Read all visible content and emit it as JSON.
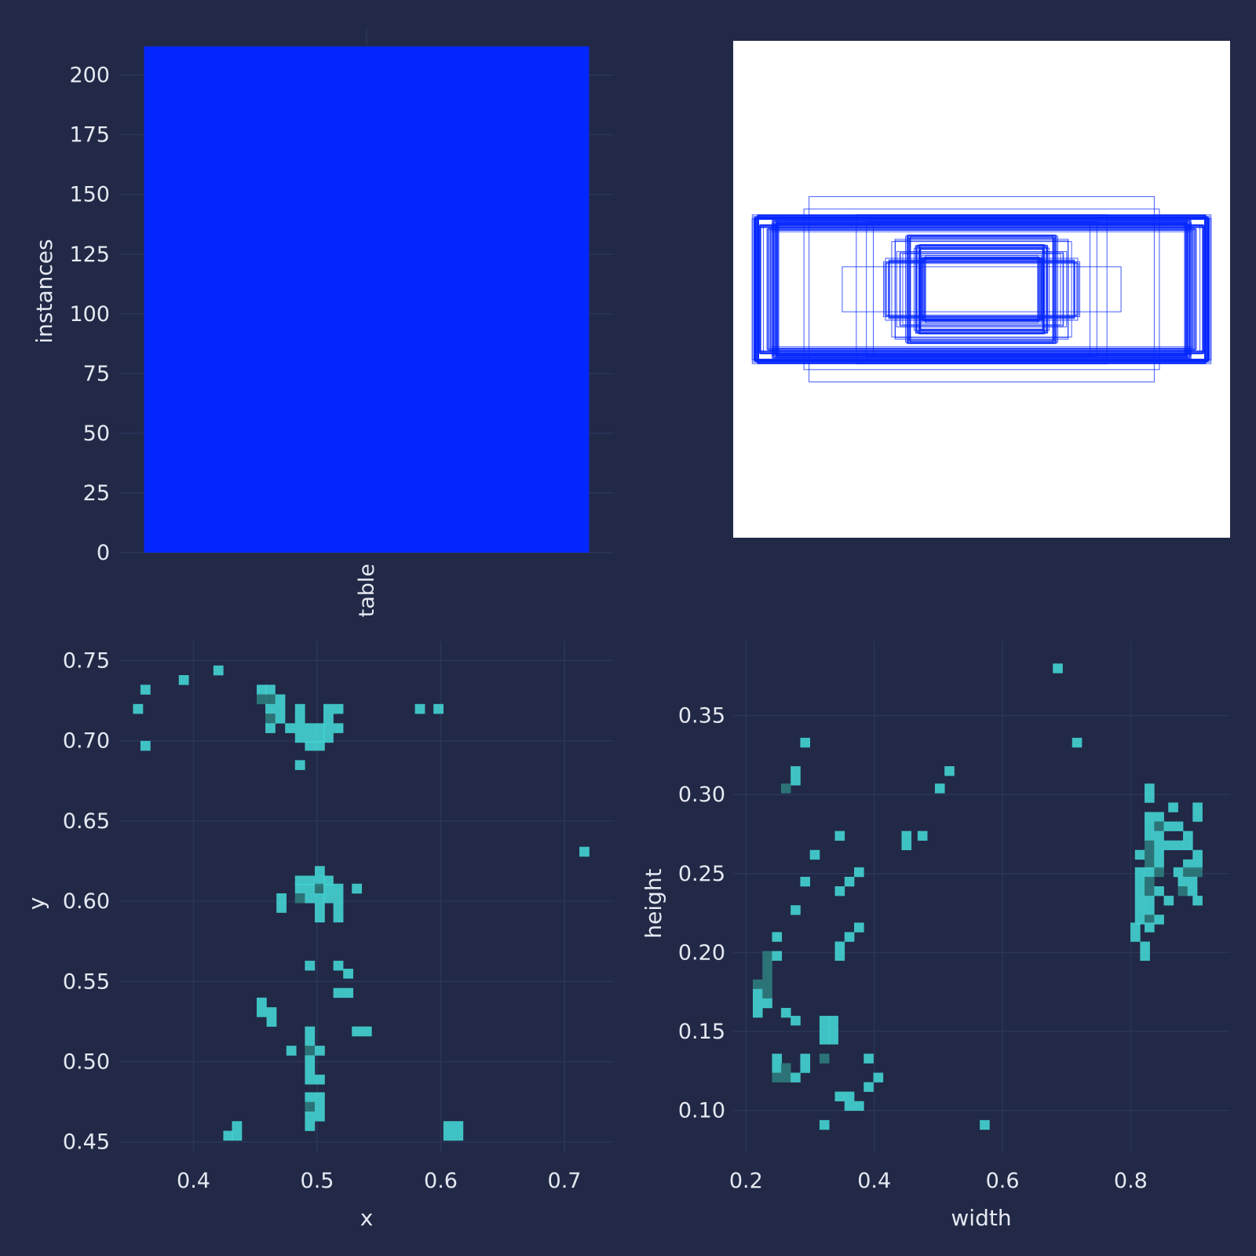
{
  "theme": {
    "background": "#212946",
    "grid": "#2a3559",
    "text": "#e6e9f2",
    "bar_color": "#0527ff",
    "box_color": "#0527ff",
    "heat_light": "#43cfcf",
    "heat_mid": "#17b3b3",
    "heat_dark": "#2e7a7c"
  },
  "chart_data": [
    {
      "type": "bar",
      "categories": [
        "table"
      ],
      "values": [
        212
      ],
      "xlabel": "",
      "ylabel": "instances",
      "ylim": [
        0,
        215
      ],
      "yticks": [
        0,
        25,
        50,
        75,
        100,
        125,
        150,
        175,
        200
      ],
      "ytick_labels": [
        "0",
        "25",
        "50",
        "75",
        "100",
        "125",
        "150",
        "175",
        "200"
      ],
      "grid": true
    },
    {
      "type": "scatter",
      "description_kind": "bounding-box overlay",
      "xlim": [
        0,
        1
      ],
      "ylim": [
        0,
        1
      ],
      "boxes": [
        {
          "w": 0.91,
          "h": 0.29,
          "count": 26
        },
        {
          "w": 0.83,
          "h": 0.27,
          "count": 18
        },
        {
          "w": 0.26,
          "h": 0.17,
          "count": 14
        },
        {
          "w": 0.24,
          "h": 0.13,
          "count": 12
        },
        {
          "w": 0.3,
          "h": 0.21,
          "count": 10
        },
        {
          "w": 0.89,
          "h": 0.25,
          "count": 10
        },
        {
          "w": 0.85,
          "h": 0.24,
          "count": 8
        },
        {
          "w": 0.69,
          "h": 0.38,
          "count": 1
        },
        {
          "w": 0.71,
          "h": 0.33,
          "count": 1
        },
        {
          "w": 0.57,
          "h": 0.09,
          "count": 1
        },
        {
          "w": 0.51,
          "h": 0.31,
          "count": 1
        },
        {
          "w": 0.45,
          "h": 0.27,
          "count": 2
        },
        {
          "w": 0.38,
          "h": 0.11,
          "count": 6
        },
        {
          "w": 0.33,
          "h": 0.15,
          "count": 4
        },
        {
          "w": 0.4,
          "h": 0.12,
          "count": 2
        },
        {
          "w": 0.35,
          "h": 0.2,
          "count": 3
        }
      ],
      "grid": false
    },
    {
      "type": "heatmap",
      "xlabel": "x",
      "ylabel": "y",
      "xlim": [
        0.34,
        0.74
      ],
      "ylim": [
        0.443,
        0.762
      ],
      "xticks": [
        0.4,
        0.5,
        0.6,
        0.7
      ],
      "xtick_labels": [
        "0.4",
        "0.5",
        "0.6",
        "0.7"
      ],
      "yticks": [
        0.45,
        0.5,
        0.55,
        0.6,
        0.65,
        0.7,
        0.75
      ],
      "ytick_labels": [
        "0.45",
        "0.50",
        "0.55",
        "0.60",
        "0.65",
        "0.70",
        "0.75"
      ],
      "bin_width": 0.0078,
      "bin_height": 0.0059,
      "points": [
        [
          0.355,
          0.72,
          1
        ],
        [
          0.361,
          0.732,
          1
        ],
        [
          0.361,
          0.697,
          1
        ],
        [
          0.392,
          0.738,
          1
        ],
        [
          0.42,
          0.744,
          1
        ],
        [
          0.455,
          0.732,
          1
        ],
        [
          0.462,
          0.732,
          1
        ],
        [
          0.455,
          0.726,
          2
        ],
        [
          0.462,
          0.726,
          2
        ],
        [
          0.47,
          0.726,
          1
        ],
        [
          0.462,
          0.72,
          1
        ],
        [
          0.47,
          0.72,
          1
        ],
        [
          0.462,
          0.714,
          2
        ],
        [
          0.47,
          0.714,
          1
        ],
        [
          0.462,
          0.708,
          1
        ],
        [
          0.478,
          0.708,
          1
        ],
        [
          0.486,
          0.72,
          1
        ],
        [
          0.486,
          0.714,
          1
        ],
        [
          0.486,
          0.708,
          1
        ],
        [
          0.486,
          0.702,
          1
        ],
        [
          0.494,
          0.702,
          1
        ],
        [
          0.494,
          0.708,
          1
        ],
        [
          0.502,
          0.708,
          1
        ],
        [
          0.502,
          0.702,
          1
        ],
        [
          0.494,
          0.697,
          1
        ],
        [
          0.502,
          0.697,
          1
        ],
        [
          0.509,
          0.702,
          1
        ],
        [
          0.509,
          0.708,
          1
        ],
        [
          0.509,
          0.714,
          1
        ],
        [
          0.517,
          0.708,
          1
        ],
        [
          0.509,
          0.72,
          1
        ],
        [
          0.517,
          0.72,
          1
        ],
        [
          0.486,
          0.685,
          1
        ],
        [
          0.583,
          0.72,
          1
        ],
        [
          0.598,
          0.72,
          1
        ],
        [
          0.716,
          0.631,
          1
        ],
        [
          0.471,
          0.602,
          1
        ],
        [
          0.471,
          0.596,
          1
        ],
        [
          0.486,
          0.613,
          1
        ],
        [
          0.494,
          0.613,
          1
        ],
        [
          0.502,
          0.613,
          1
        ],
        [
          0.502,
          0.619,
          1
        ],
        [
          0.509,
          0.613,
          1
        ],
        [
          0.486,
          0.608,
          1
        ],
        [
          0.494,
          0.608,
          1
        ],
        [
          0.502,
          0.608,
          2
        ],
        [
          0.509,
          0.608,
          1
        ],
        [
          0.517,
          0.608,
          1
        ],
        [
          0.486,
          0.602,
          2
        ],
        [
          0.494,
          0.602,
          1
        ],
        [
          0.502,
          0.602,
          1
        ],
        [
          0.509,
          0.602,
          1
        ],
        [
          0.517,
          0.602,
          1
        ],
        [
          0.502,
          0.596,
          1
        ],
        [
          0.517,
          0.596,
          1
        ],
        [
          0.502,
          0.59,
          1
        ],
        [
          0.517,
          0.59,
          1
        ],
        [
          0.532,
          0.608,
          1
        ],
        [
          0.494,
          0.56,
          1
        ],
        [
          0.517,
          0.56,
          1
        ],
        [
          0.525,
          0.555,
          1
        ],
        [
          0.517,
          0.543,
          1
        ],
        [
          0.525,
          0.543,
          1
        ],
        [
          0.455,
          0.537,
          1
        ],
        [
          0.455,
          0.531,
          1
        ],
        [
          0.463,
          0.531,
          1
        ],
        [
          0.463,
          0.525,
          1
        ],
        [
          0.532,
          0.519,
          1
        ],
        [
          0.54,
          0.519,
          1
        ],
        [
          0.494,
          0.519,
          1
        ],
        [
          0.494,
          0.513,
          1
        ],
        [
          0.479,
          0.507,
          1
        ],
        [
          0.494,
          0.507,
          2
        ],
        [
          0.502,
          0.507,
          1
        ],
        [
          0.494,
          0.501,
          1
        ],
        [
          0.494,
          0.495,
          1
        ],
        [
          0.494,
          0.489,
          1
        ],
        [
          0.502,
          0.489,
          1
        ],
        [
          0.494,
          0.478,
          1
        ],
        [
          0.502,
          0.478,
          1
        ],
        [
          0.494,
          0.472,
          2
        ],
        [
          0.502,
          0.472,
          1
        ],
        [
          0.494,
          0.466,
          1
        ],
        [
          0.502,
          0.466,
          1
        ],
        [
          0.494,
          0.46,
          1
        ],
        [
          0.435,
          0.46,
          1
        ],
        [
          0.428,
          0.454,
          1
        ],
        [
          0.435,
          0.454,
          1
        ],
        [
          0.606,
          0.46,
          1
        ],
        [
          0.614,
          0.46,
          1
        ],
        [
          0.606,
          0.454,
          1
        ],
        [
          0.614,
          0.454,
          1
        ]
      ],
      "grid": true
    },
    {
      "type": "heatmap",
      "xlabel": "width",
      "ylabel": "height",
      "xlim": [
        0.18,
        0.955
      ],
      "ylim": [
        0.073,
        0.397
      ],
      "xticks": [
        0.2,
        0.4,
        0.6,
        0.8
      ],
      "xtick_labels": [
        "0.2",
        "0.4",
        "0.6",
        "0.8"
      ],
      "yticks": [
        0.1,
        0.15,
        0.2,
        0.25,
        0.3,
        0.35
      ],
      "ytick_labels": [
        "0.10",
        "0.15",
        "0.20",
        "0.25",
        "0.30",
        "0.35"
      ],
      "bin_width": 0.0148,
      "bin_height": 0.0059,
      "points": [
        [
          0.686,
          0.38,
          1
        ],
        [
          0.716,
          0.333,
          1
        ],
        [
          0.292,
          0.333,
          1
        ],
        [
          0.277,
          0.315,
          1
        ],
        [
          0.277,
          0.309,
          1
        ],
        [
          0.262,
          0.304,
          2
        ],
        [
          0.517,
          0.315,
          1
        ],
        [
          0.502,
          0.304,
          1
        ],
        [
          0.346,
          0.274,
          1
        ],
        [
          0.45,
          0.274,
          1
        ],
        [
          0.45,
          0.268,
          1
        ],
        [
          0.475,
          0.274,
          1
        ],
        [
          0.307,
          0.262,
          1
        ],
        [
          0.376,
          0.251,
          1
        ],
        [
          0.292,
          0.245,
          1
        ],
        [
          0.361,
          0.245,
          1
        ],
        [
          0.346,
          0.239,
          1
        ],
        [
          0.277,
          0.227,
          1
        ],
        [
          0.376,
          0.216,
          1
        ],
        [
          0.361,
          0.21,
          1
        ],
        [
          0.248,
          0.21,
          1
        ],
        [
          0.346,
          0.204,
          1
        ],
        [
          0.346,
          0.198,
          1
        ],
        [
          0.233,
          0.198,
          2
        ],
        [
          0.248,
          0.198,
          1
        ],
        [
          0.233,
          0.192,
          2
        ],
        [
          0.233,
          0.186,
          2
        ],
        [
          0.218,
          0.18,
          2
        ],
        [
          0.233,
          0.18,
          2
        ],
        [
          0.218,
          0.174,
          1
        ],
        [
          0.233,
          0.174,
          2
        ],
        [
          0.218,
          0.168,
          1
        ],
        [
          0.233,
          0.168,
          1
        ],
        [
          0.218,
          0.162,
          1
        ],
        [
          0.262,
          0.162,
          1
        ],
        [
          0.277,
          0.157,
          1
        ],
        [
          0.322,
          0.157,
          1
        ],
        [
          0.336,
          0.157,
          1
        ],
        [
          0.322,
          0.151,
          1
        ],
        [
          0.336,
          0.151,
          1
        ],
        [
          0.322,
          0.145,
          1
        ],
        [
          0.336,
          0.145,
          1
        ],
        [
          0.248,
          0.133,
          1
        ],
        [
          0.292,
          0.133,
          1
        ],
        [
          0.322,
          0.133,
          2
        ],
        [
          0.391,
          0.133,
          1
        ],
        [
          0.248,
          0.127,
          1
        ],
        [
          0.262,
          0.127,
          2
        ],
        [
          0.292,
          0.127,
          1
        ],
        [
          0.248,
          0.121,
          2
        ],
        [
          0.262,
          0.121,
          2
        ],
        [
          0.277,
          0.121,
          1
        ],
        [
          0.406,
          0.121,
          1
        ],
        [
          0.391,
          0.115,
          1
        ],
        [
          0.346,
          0.109,
          1
        ],
        [
          0.361,
          0.109,
          1
        ],
        [
          0.361,
          0.103,
          1
        ],
        [
          0.376,
          0.103,
          1
        ],
        [
          0.322,
          0.091,
          1
        ],
        [
          0.572,
          0.091,
          1
        ],
        [
          0.829,
          0.304,
          1
        ],
        [
          0.829,
          0.298,
          1
        ],
        [
          0.904,
          0.292,
          1
        ],
        [
          0.904,
          0.286,
          1
        ],
        [
          0.866,
          0.292,
          1
        ],
        [
          0.829,
          0.286,
          1
        ],
        [
          0.844,
          0.286,
          1
        ],
        [
          0.829,
          0.28,
          1
        ],
        [
          0.844,
          0.28,
          2
        ],
        [
          0.859,
          0.28,
          1
        ],
        [
          0.829,
          0.274,
          1
        ],
        [
          0.844,
          0.274,
          1
        ],
        [
          0.874,
          0.28,
          1
        ],
        [
          0.889,
          0.274,
          1
        ],
        [
          0.829,
          0.268,
          2
        ],
        [
          0.844,
          0.268,
          1
        ],
        [
          0.859,
          0.268,
          1
        ],
        [
          0.874,
          0.268,
          1
        ],
        [
          0.889,
          0.268,
          1
        ],
        [
          0.814,
          0.262,
          1
        ],
        [
          0.829,
          0.262,
          2
        ],
        [
          0.844,
          0.262,
          1
        ],
        [
          0.904,
          0.262,
          1
        ],
        [
          0.829,
          0.256,
          2
        ],
        [
          0.844,
          0.256,
          1
        ],
        [
          0.889,
          0.256,
          1
        ],
        [
          0.904,
          0.256,
          1
        ],
        [
          0.814,
          0.251,
          1
        ],
        [
          0.829,
          0.251,
          1
        ],
        [
          0.844,
          0.251,
          2
        ],
        [
          0.874,
          0.251,
          1
        ],
        [
          0.889,
          0.251,
          2
        ],
        [
          0.904,
          0.251,
          2
        ],
        [
          0.814,
          0.245,
          1
        ],
        [
          0.829,
          0.245,
          2
        ],
        [
          0.881,
          0.245,
          1
        ],
        [
          0.896,
          0.245,
          1
        ],
        [
          0.814,
          0.239,
          1
        ],
        [
          0.829,
          0.239,
          2
        ],
        [
          0.844,
          0.239,
          1
        ],
        [
          0.881,
          0.239,
          2
        ],
        [
          0.896,
          0.239,
          1
        ],
        [
          0.904,
          0.233,
          1
        ],
        [
          0.814,
          0.233,
          1
        ],
        [
          0.829,
          0.233,
          1
        ],
        [
          0.859,
          0.233,
          1
        ],
        [
          0.814,
          0.227,
          1
        ],
        [
          0.829,
          0.227,
          1
        ],
        [
          0.814,
          0.221,
          1
        ],
        [
          0.829,
          0.221,
          2
        ],
        [
          0.844,
          0.221,
          1
        ],
        [
          0.807,
          0.216,
          1
        ],
        [
          0.829,
          0.216,
          1
        ],
        [
          0.807,
          0.21,
          1
        ],
        [
          0.822,
          0.204,
          1
        ],
        [
          0.822,
          0.198,
          1
        ]
      ],
      "grid": true
    }
  ]
}
